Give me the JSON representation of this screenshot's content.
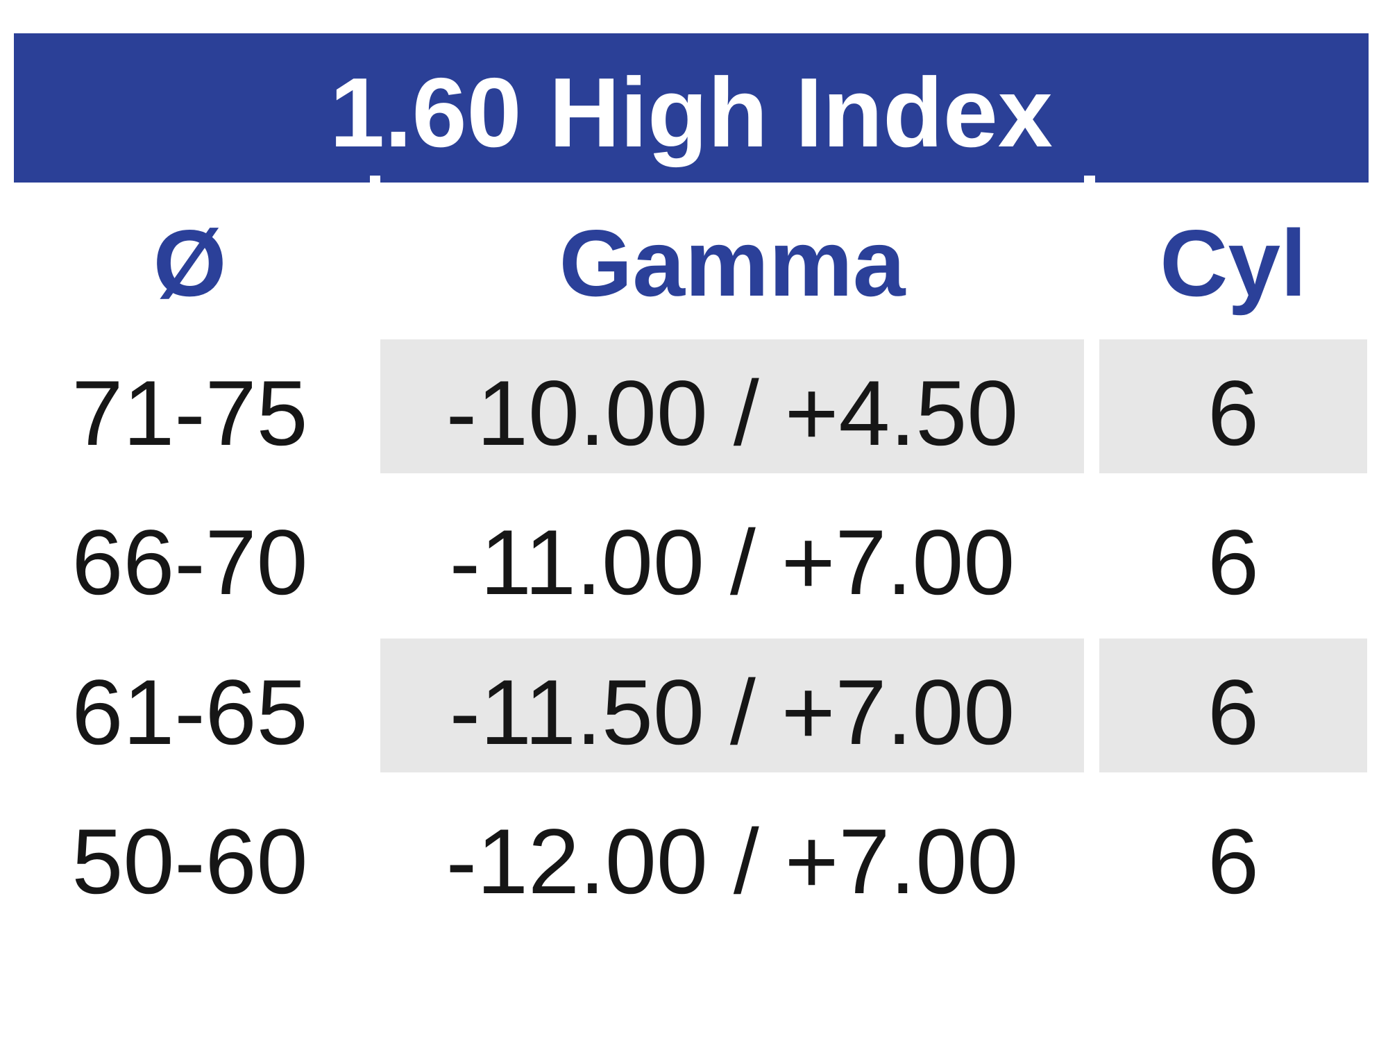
{
  "page": {
    "background": "#FFFFFF"
  },
  "table": {
    "title": "1.60 High Index",
    "columns": [
      {
        "key": "diameter",
        "label": "Ø"
      },
      {
        "key": "gamma",
        "label": "Gamma"
      },
      {
        "key": "cyl",
        "label": "Cyl"
      }
    ],
    "rows": [
      {
        "diameter": "71-75",
        "gamma": "-10.00 / +4.50",
        "cyl": "6",
        "shaded": true
      },
      {
        "diameter": "66-70",
        "gamma": "-11.00 / +7.00",
        "cyl": "6",
        "shaded": false
      },
      {
        "diameter": "61-65",
        "gamma": "-11.50 / +7.00",
        "cyl": "6",
        "shaded": true
      },
      {
        "diameter": "50-60",
        "gamma": "-12.00 / +7.00",
        "cyl": "6",
        "shaded": false
      }
    ],
    "colors": {
      "header_bg": "#2B4097",
      "header_text": "#FFFFFF",
      "column_header_text": "#2B4099",
      "shaded_cell_bg": "#E7E7E7",
      "data_text": "#161616"
    }
  },
  "chart_data": {
    "type": "table",
    "title": "1.60 High Index",
    "columns": [
      "Ø",
      "Gamma",
      "Cyl"
    ],
    "rows": [
      [
        "71-75",
        "-10.00 / +4.50",
        "6"
      ],
      [
        "66-70",
        "-11.00 / +7.00",
        "6"
      ],
      [
        "61-65",
        "-11.50 / +7.00",
        "6"
      ],
      [
        "50-60",
        "-12.00 / +7.00",
        "6"
      ]
    ]
  }
}
